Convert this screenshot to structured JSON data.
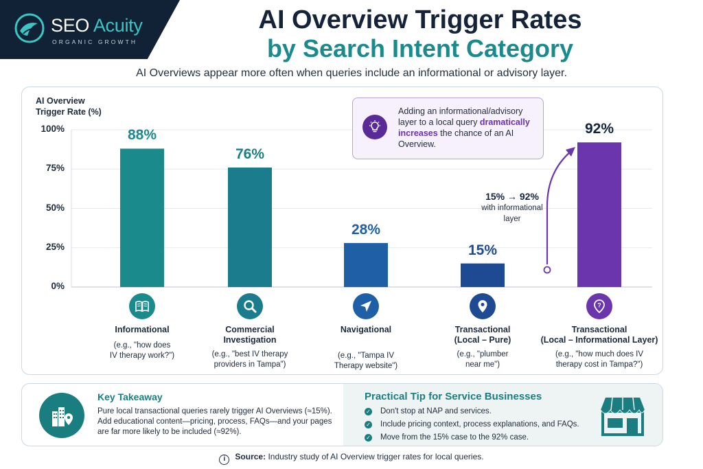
{
  "brand": {
    "name_part1": "SEO",
    "name_part2": "Acuity",
    "tagline": "ORGANIC GROWTH"
  },
  "title_line1": "AI Overview Trigger Rates",
  "title_line2": "by Search Intent Category",
  "subtitle": "AI Overviews appear more often when queries include an informational or advisory layer.",
  "chart_data": {
    "type": "bar",
    "ylabel_line1": "AI Overview",
    "ylabel_line2": "Trigger Rate (%)",
    "ylim": [
      0,
      100
    ],
    "yticks": [
      "0%",
      "25%",
      "50%",
      "75%",
      "100%"
    ],
    "grid": true,
    "categories": [
      {
        "name_line1": "Informational",
        "name_line2": "",
        "example_line1": "(e.g., \"how does",
        "example_line2": "IV therapy work?\")",
        "value": 88,
        "value_label": "88%",
        "color": "#1b8a8c",
        "label_color": "#1b8a8c",
        "icon": "open-book-icon"
      },
      {
        "name_line1": "Commercial",
        "name_line2": "Investigation",
        "example_line1": "(e.g., \"best IV therapy",
        "example_line2": "providers in Tampa\")",
        "value": 76,
        "value_label": "76%",
        "color": "#1a7c8c",
        "label_color": "#1a7e84",
        "icon": "magnifier-icon"
      },
      {
        "name_line1": "Navigational",
        "name_line2": "",
        "example_line1": "(e.g., \"Tampa IV",
        "example_line2": "Therapy website\")",
        "value": 28,
        "value_label": "28%",
        "color": "#1f5fa6",
        "label_color": "#1f5fa6",
        "icon": "navigation-arrow-icon"
      },
      {
        "name_line1": "Transactional",
        "name_line2": "(Local – Pure)",
        "example_line1": "(e.g., \"plumber",
        "example_line2": "near me\")",
        "value": 15,
        "value_label": "15%",
        "color": "#1d4a92",
        "label_color": "#1d4a92",
        "icon": "map-pin-icon"
      },
      {
        "name_line1": "Transactional",
        "name_line2": "(Local – Informational Layer)",
        "example_line1": "(e.g., \"how much does IV",
        "example_line2": "therapy cost in Tampa?\")",
        "value": 92,
        "value_label": "92%",
        "color": "#6a35ad",
        "label_color": "#14233a",
        "icon": "question-pin-icon"
      }
    ],
    "annotations": {
      "callout_part1": "Adding an informational/advisory layer to a local query ",
      "callout_emphasis": "dramatically increases",
      "callout_part2": " the chance of an AI Overview.",
      "jump_main": "15% → 92%",
      "jump_sub_line1": "with informational",
      "jump_sub_line2": "layer"
    }
  },
  "key_takeaway": {
    "title": "Key Takeaway",
    "text": "Pure local transactional queries rarely trigger AI Overviews (≈15%). Add educational content—pricing, process, FAQs—and your pages are far more likely to be included (≈92%)."
  },
  "tip": {
    "title": "Practical Tip for Service Businesses",
    "items": [
      "Don't stop at NAP and services.",
      "Include pricing context, process explanations, and FAQs.",
      "Move from the 15% case to the 92% case."
    ]
  },
  "source": {
    "label": "Source:",
    "text": " Industry study of AI Overview trigger rates for local queries."
  },
  "colors": {
    "navy": "#112236",
    "teal": "#1a7e81",
    "purple": "#6a35ad"
  }
}
